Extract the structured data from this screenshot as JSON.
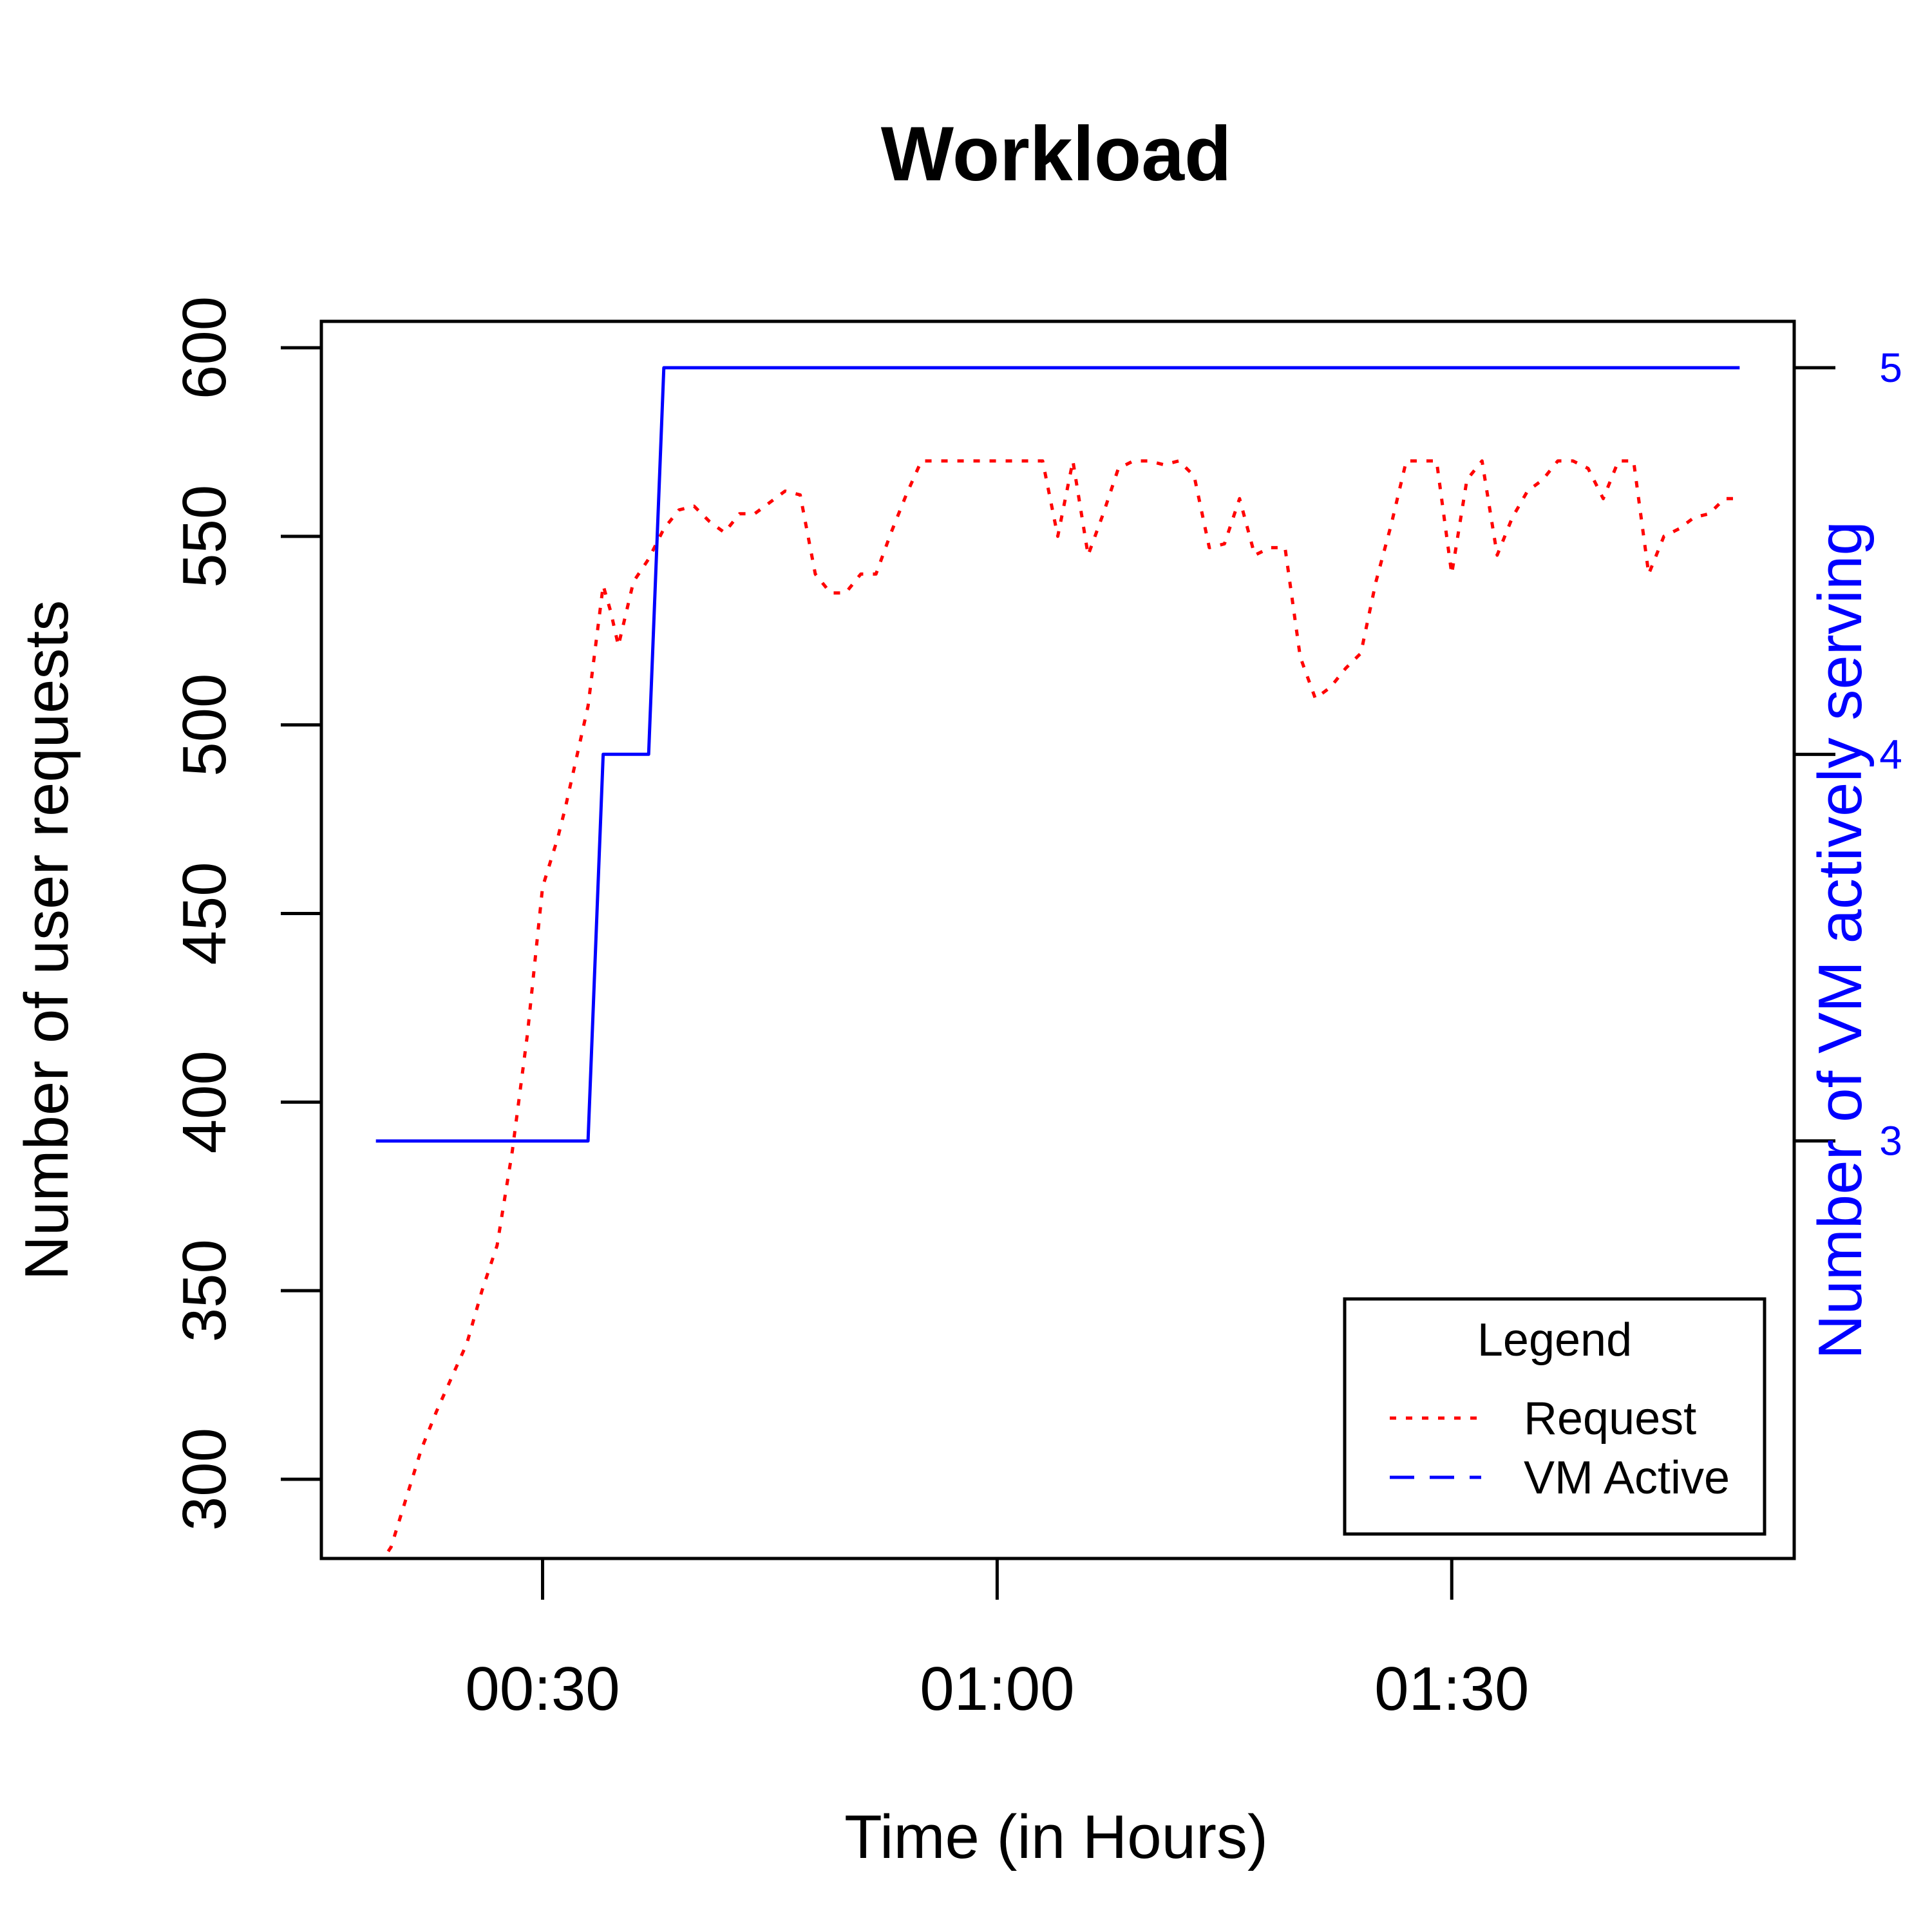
{
  "chart_data": {
    "type": "line",
    "title": "Workload",
    "xlabel": "Time (in Hours)",
    "ylabel": "Number of user requests",
    "y2label": "Number of VM actively serving",
    "x_unit": "minutes",
    "x_ticks": [
      {
        "value": 30,
        "label": "00:30"
      },
      {
        "value": 60,
        "label": "01:00"
      },
      {
        "value": 90,
        "label": "01:30"
      }
    ],
    "xlim": [
      15.4,
      112.6
    ],
    "ylim": [
      279,
      607
    ],
    "y_ticks": [
      300,
      350,
      400,
      450,
      500,
      550,
      600
    ],
    "y2lim": [
      1.92,
      5.12
    ],
    "y2_ticks": [
      3,
      4,
      5
    ],
    "grid": false,
    "legend": {
      "title": "Legend",
      "position": "bottom-right"
    },
    "colors": {
      "request": "#ff0000",
      "vm": "#0000ff",
      "axis": "#000000"
    },
    "series": [
      {
        "name": "Request",
        "axis": "left",
        "style": "dotted",
        "x": [
          19,
          19.5,
          20,
          21,
          22,
          23,
          24,
          25,
          26,
          27,
          28,
          29,
          30,
          31,
          31.5,
          33,
          34,
          34.5,
          35,
          36,
          37,
          38,
          39,
          40,
          41,
          42,
          43,
          44,
          45,
          46,
          47,
          48,
          49,
          50,
          51,
          52,
          53,
          54,
          55,
          56,
          57,
          58,
          59,
          60,
          61,
          62,
          63,
          64,
          65,
          66,
          67,
          68,
          69,
          70,
          71,
          72,
          73,
          74,
          75,
          76,
          77,
          78,
          79,
          80,
          81,
          82,
          83,
          84,
          85,
          86,
          87,
          88,
          89,
          90,
          91,
          92,
          93,
          94,
          95,
          96,
          97,
          98,
          99,
          100,
          101,
          102,
          103,
          104,
          105,
          106,
          107,
          108,
          109
        ],
        "values": [
          279,
          279,
          282,
          295,
          308,
          318,
          327,
          336,
          350,
          362,
          387,
          418,
          457,
          470,
          478,
          505,
          537,
          530,
          521,
          538,
          544,
          552,
          557,
          558,
          554,
          551,
          556,
          556,
          559,
          562,
          561,
          540,
          535,
          535,
          540,
          540,
          551,
          561,
          570,
          570,
          570,
          570,
          570,
          570,
          570,
          570,
          570,
          550,
          570,
          545,
          556,
          568,
          570,
          570,
          569,
          570,
          566,
          547,
          548,
          560,
          545,
          547,
          547,
          518,
          507,
          510,
          515,
          519,
          538,
          553,
          570,
          570,
          570,
          540,
          565,
          570,
          545,
          555,
          562,
          565,
          570,
          570,
          568,
          560,
          570,
          570,
          540,
          550,
          552,
          555,
          556,
          560,
          560
        ]
      },
      {
        "name": "VM Active",
        "axis": "right",
        "style": "solid",
        "x": [
          19,
          33,
          34,
          37,
          38,
          109
        ],
        "values": [
          3,
          3,
          4,
          4,
          5,
          5
        ]
      }
    ]
  }
}
